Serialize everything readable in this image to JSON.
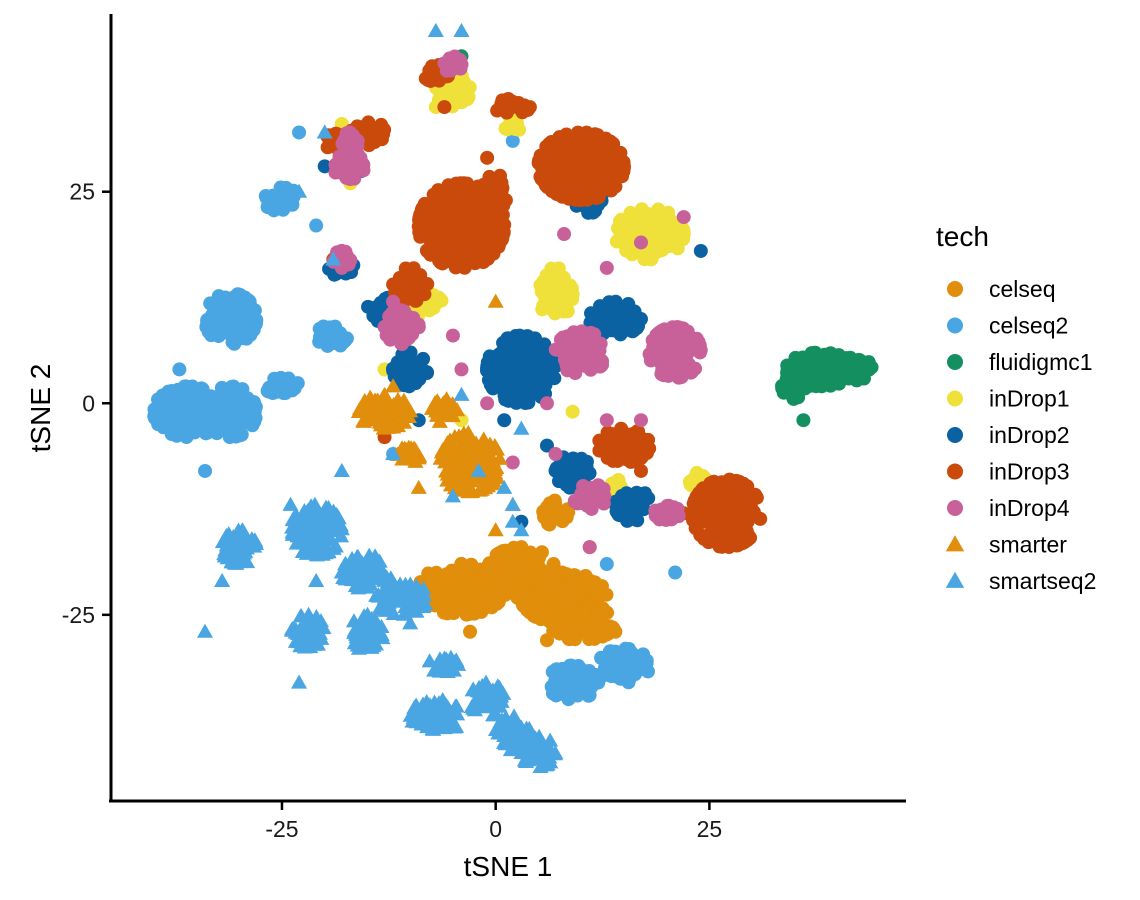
{
  "chart_data": {
    "type": "scatter",
    "title": "",
    "xlabel": "tSNE 1",
    "ylabel": "tSNE 2",
    "xlim": [
      -45,
      48
    ],
    "ylim": [
      -47,
      46
    ],
    "xticks": [
      -25,
      0,
      25
    ],
    "xtick_labels": [
      "-25",
      "0",
      "25"
    ],
    "yticks": [
      -25,
      0,
      25
    ],
    "ytick_labels": [
      "-25",
      "0",
      "25"
    ],
    "grid": false,
    "legend": {
      "title": "tech",
      "placement": "right",
      "entries": [
        {
          "label": "celseq",
          "shape": "circle"
        },
        {
          "label": "celseq2",
          "shape": "circle"
        },
        {
          "label": "fluidigmc1",
          "shape": "circle"
        },
        {
          "label": "inDrop1",
          "shape": "circle"
        },
        {
          "label": "inDrop2",
          "shape": "circle"
        },
        {
          "label": "inDrop3",
          "shape": "circle"
        },
        {
          "label": "inDrop4",
          "shape": "circle"
        },
        {
          "label": "smarter",
          "shape": "triangle"
        },
        {
          "label": "smartseq2",
          "shape": "triangle"
        }
      ]
    },
    "series": [
      {
        "name": "celseq",
        "shape": "circle",
        "color": "#E08E0B",
        "clusters": [
          [
            -4,
            -22,
            5,
            3
          ],
          [
            8,
            -23,
            5,
            3
          ],
          [
            3,
            -20,
            4,
            3
          ],
          [
            10,
            -26,
            4,
            2
          ],
          [
            7,
            -13,
            1.5,
            1.5
          ]
        ],
        "points": [
          [
            -3,
            -27
          ],
          [
            14,
            -27
          ],
          [
            11,
            -17
          ],
          [
            6,
            -28
          ]
        ]
      },
      {
        "name": "celseq2",
        "shape": "circle",
        "color": "#4AA6E3",
        "clusters": [
          [
            -36,
            -1,
            4,
            3
          ],
          [
            -31,
            10,
            3,
            3
          ],
          [
            -31,
            -1,
            3,
            3
          ],
          [
            -19,
            8,
            2,
            1.3
          ],
          [
            -25,
            2,
            2,
            1
          ],
          [
            -25,
            24,
            2,
            1.5
          ],
          [
            9,
            -33,
            3,
            2
          ],
          [
            15,
            -31,
            3,
            2
          ]
        ],
        "points": [
          [
            -34,
            -8
          ],
          [
            -37,
            4
          ],
          [
            -21,
            21
          ],
          [
            21,
            -20
          ],
          [
            13,
            -19
          ],
          [
            -23,
            32
          ],
          [
            2,
            31
          ],
          [
            -12,
            -6
          ]
        ]
      },
      {
        "name": "fluidigmc1",
        "shape": "circle",
        "color": "#149060",
        "clusters": [
          [
            38,
            4,
            4,
            2
          ],
          [
            42,
            4,
            2,
            1.5
          ],
          [
            35,
            2,
            1.5,
            1.5
          ]
        ],
        "points": [
          [
            36,
            -2
          ],
          [
            -4,
            41
          ]
        ]
      },
      {
        "name": "inDrop1",
        "shape": "circle",
        "color": "#F0E13A",
        "clusters": [
          [
            18,
            20,
            4,
            3
          ],
          [
            7,
            13,
            2,
            3
          ],
          [
            -9,
            12,
            3,
            2
          ],
          [
            -5,
            37,
            2,
            2
          ],
          [
            2,
            33,
            1,
            1
          ],
          [
            14,
            -10,
            1,
            1
          ],
          [
            24,
            -9,
            1.5,
            1
          ]
        ],
        "points": [
          [
            -18,
            33
          ],
          [
            -17,
            26
          ],
          [
            -13,
            4
          ],
          [
            11,
            -17
          ],
          [
            -4,
            -2
          ],
          [
            9,
            -1
          ],
          [
            -7,
            35
          ]
        ]
      },
      {
        "name": "inDrop2",
        "shape": "circle",
        "color": "#0B62A3",
        "clusters": [
          [
            3,
            4,
            4,
            4
          ],
          [
            -10,
            4,
            2,
            2
          ],
          [
            -13,
            11,
            2,
            1.5
          ],
          [
            14,
            10,
            3,
            2
          ],
          [
            9,
            -8,
            2,
            2
          ],
          [
            16,
            -12,
            2,
            2
          ],
          [
            11,
            24,
            2,
            1.5
          ],
          [
            -17,
            28,
            1.5,
            1
          ],
          [
            -18,
            16,
            1.5,
            1
          ]
        ],
        "points": [
          [
            6,
            -5
          ],
          [
            3,
            -14
          ],
          [
            -20,
            28
          ],
          [
            24,
            18
          ],
          [
            -9,
            -2
          ],
          [
            1,
            -2
          ]
        ]
      },
      {
        "name": "inDrop3",
        "shape": "circle",
        "color": "#CA4A0C",
        "clusters": [
          [
            -4,
            21,
            5,
            5
          ],
          [
            10,
            28,
            5,
            4
          ],
          [
            27,
            -13,
            4,
            4
          ],
          [
            15,
            -5,
            3,
            2
          ],
          [
            -10,
            14,
            2,
            2
          ],
          [
            -7,
            39,
            1.5,
            1
          ],
          [
            -15,
            32,
            2,
            1.5
          ],
          [
            -19,
            31,
            1,
            1
          ],
          [
            2,
            35,
            2,
            1
          ],
          [
            0,
            25,
            1.5,
            2
          ]
        ],
        "points": [
          [
            -19,
            17
          ],
          [
            -1,
            29
          ],
          [
            -6,
            35
          ],
          [
            4,
            35
          ],
          [
            17,
            -8
          ],
          [
            -13,
            -4
          ],
          [
            22,
            -13
          ]
        ]
      },
      {
        "name": "inDrop4",
        "shape": "circle",
        "color": "#C86199",
        "clusters": [
          [
            21,
            6,
            3,
            3
          ],
          [
            10,
            6,
            3,
            2.5
          ],
          [
            -11,
            9,
            2,
            2
          ],
          [
            11,
            -11,
            2,
            1.5
          ],
          [
            -17,
            28,
            2,
            1.5
          ],
          [
            -17,
            31,
            1,
            1
          ],
          [
            -18,
            17,
            1,
            1
          ],
          [
            -5,
            40,
            1,
            1
          ],
          [
            20,
            -13,
            1.5,
            1
          ]
        ],
        "points": [
          [
            -18,
            16
          ],
          [
            13,
            16
          ],
          [
            17,
            19
          ],
          [
            8,
            20
          ],
          [
            11,
            -17
          ],
          [
            -5,
            8
          ],
          [
            2,
            -7
          ],
          [
            -12,
            12
          ],
          [
            13,
            -2
          ],
          [
            17,
            -2
          ],
          [
            -4,
            4
          ],
          [
            6,
            0
          ],
          [
            -1,
            0
          ],
          [
            22,
            22
          ],
          [
            7,
            -6
          ]
        ]
      },
      {
        "name": "smarter",
        "shape": "triangle",
        "color": "#E08E0B",
        "clusters": [
          [
            -3,
            -7,
            3.5,
            3.5
          ],
          [
            -13,
            -1,
            3,
            2
          ],
          [
            -6,
            -1,
            1.5,
            1.5
          ],
          [
            -10,
            -6,
            1.5,
            1
          ]
        ],
        "points": [
          [
            -12,
            2
          ],
          [
            -9,
            -10
          ],
          [
            2,
            -12
          ],
          [
            0,
            -15
          ],
          [
            0,
            12
          ]
        ]
      },
      {
        "name": "smartseq2",
        "shape": "triangle",
        "color": "#4AA6E3",
        "clusters": [
          [
            -21,
            -15,
            3,
            3
          ],
          [
            -15,
            -20,
            3,
            2
          ],
          [
            -11,
            -23,
            3,
            2
          ],
          [
            -22,
            -27,
            2,
            2
          ],
          [
            -30,
            -17,
            2,
            2
          ],
          [
            -7,
            -37,
            3,
            2
          ],
          [
            -1,
            -35,
            2,
            2
          ],
          [
            2,
            -39,
            2,
            2
          ],
          [
            5,
            -41,
            2,
            2
          ],
          [
            -15,
            -27,
            2,
            2
          ],
          [
            -6,
            -31,
            2,
            1
          ]
        ],
        "points": [
          [
            -4,
            44
          ],
          [
            -7,
            44
          ],
          [
            -20,
            32
          ],
          [
            -23,
            25
          ],
          [
            -19,
            17
          ],
          [
            -5,
            -11
          ],
          [
            -2,
            -8
          ],
          [
            2,
            -14
          ],
          [
            3,
            -15
          ],
          [
            -18,
            -8
          ],
          [
            -24,
            -12
          ],
          [
            -32,
            -21
          ],
          [
            -34,
            -27
          ],
          [
            -12,
            -6
          ],
          [
            -10,
            -26
          ],
          [
            3,
            -3
          ],
          [
            -4,
            1
          ],
          [
            1,
            -10
          ],
          [
            2,
            -12
          ],
          [
            -21,
            -21
          ],
          [
            -23,
            -33
          ],
          [
            -16,
            -29
          ]
        ]
      }
    ]
  }
}
